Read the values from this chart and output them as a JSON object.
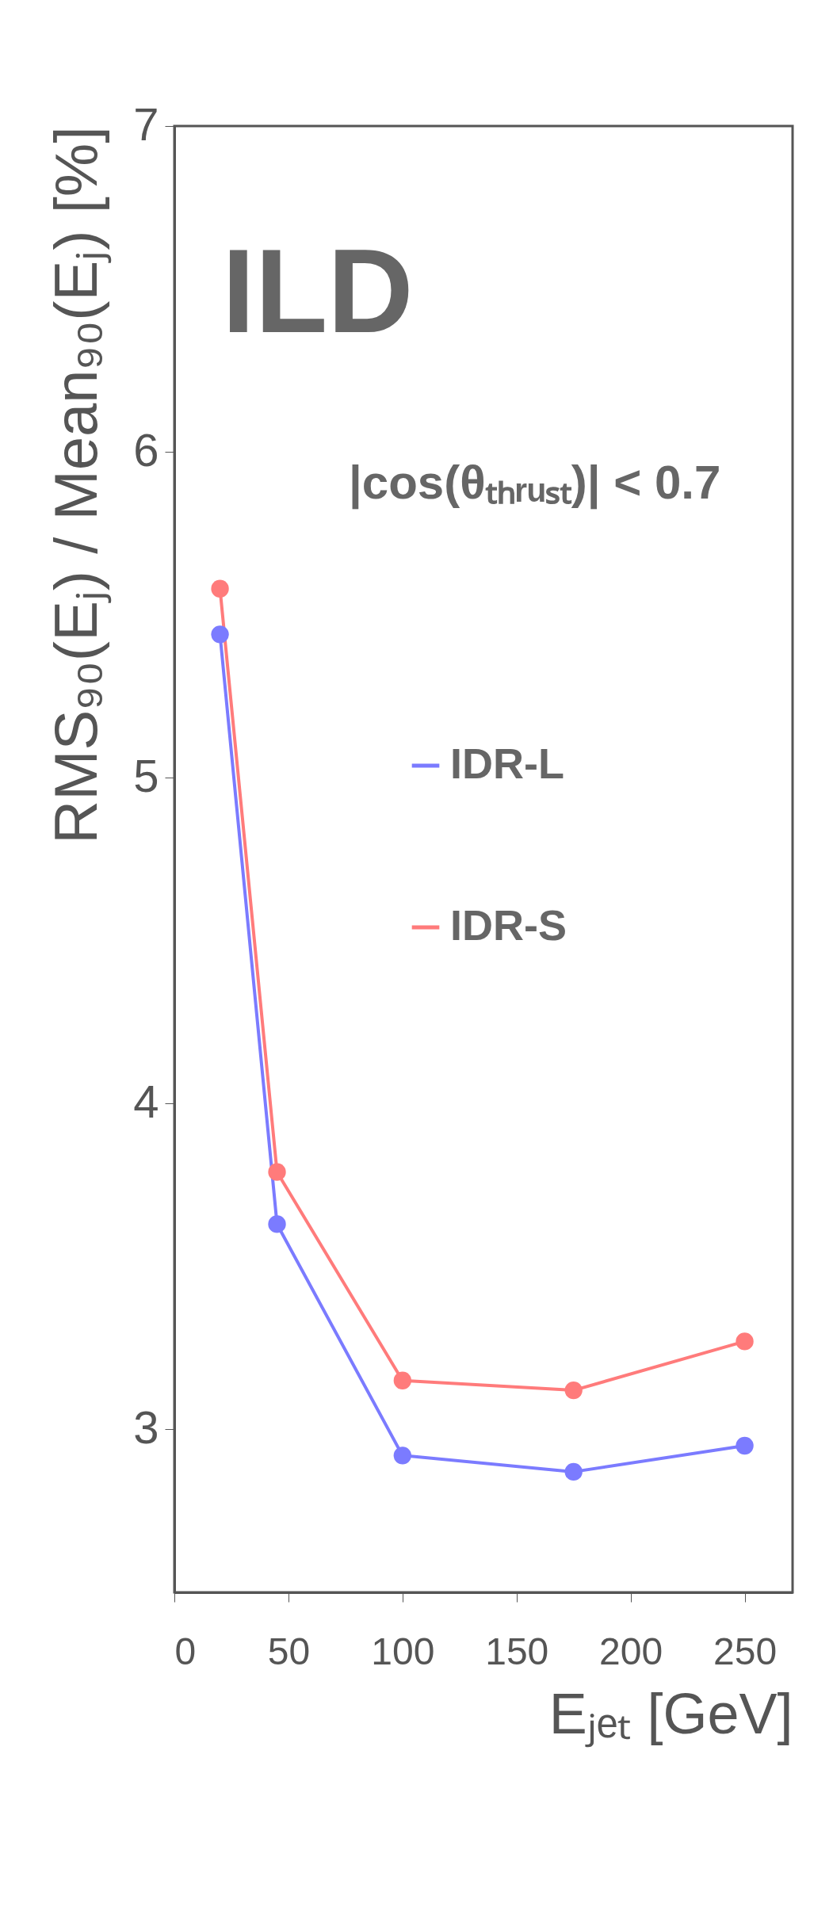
{
  "chart_data": {
    "type": "line",
    "xlabel": "Eⱼₑₜ [GeV]",
    "ylabel": "RMS₉₀(Eⱼ) / Mean₉₀(Eⱼ) [%]",
    "annotations": [
      "ILD",
      "|cos(θₜₕᵣᵤₛₜ)| < 0.7"
    ],
    "x": [
      20,
      45,
      100,
      175,
      250
    ],
    "series": [
      {
        "name": "IDR-L",
        "color": "#7b7bff",
        "values": [
          5.44,
          3.63,
          2.92,
          2.87,
          2.95
        ]
      },
      {
        "name": "IDR-S",
        "color": "#ff7b7b",
        "values": [
          5.58,
          3.79,
          3.15,
          3.12,
          3.27
        ]
      }
    ],
    "xlim": [
      0,
      271
    ],
    "xticks": [
      0,
      50,
      100,
      150,
      200,
      250
    ],
    "ylim": [
      2.5,
      7
    ],
    "yticks": [
      3,
      4,
      5,
      6,
      7
    ],
    "grid": false,
    "legend": "left",
    "marker": "circle",
    "line_style": "solid"
  }
}
